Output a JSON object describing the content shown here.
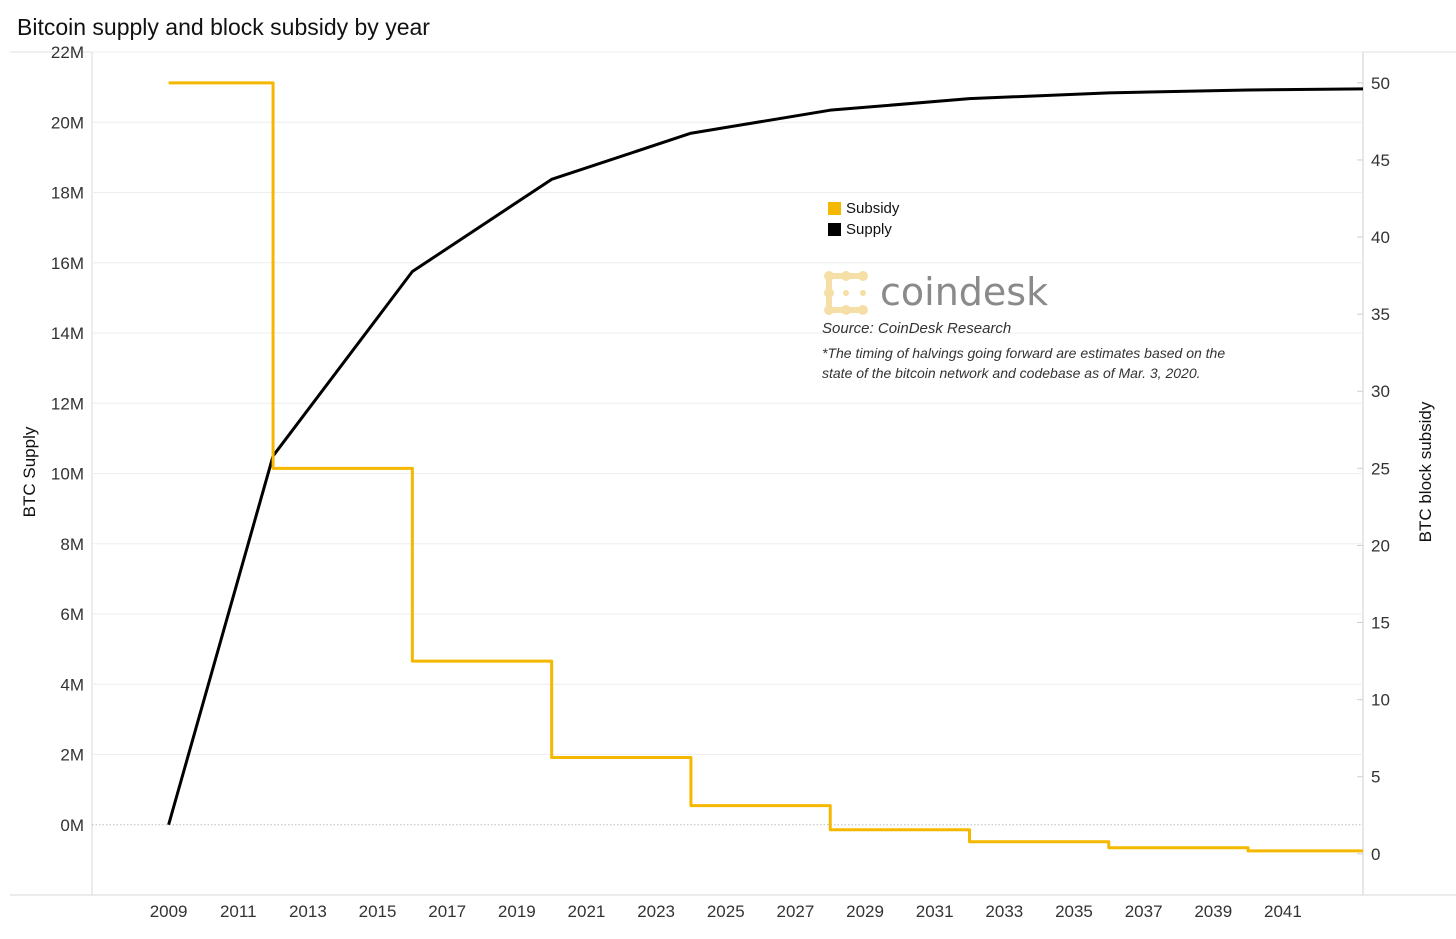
{
  "chart_data": {
    "type": "line",
    "title": "Bitcoin supply and block subsidy by year",
    "ylabel_left": "BTC Supply",
    "ylabel_right": "BTC block subsidy",
    "ylim_left": [
      -2000000,
      22000000
    ],
    "ylim_right": [
      -2.67,
      52
    ],
    "yticks_left": [
      {
        "value": 0,
        "label": "0M"
      },
      {
        "value": 2000000,
        "label": "2M"
      },
      {
        "value": 4000000,
        "label": "4M"
      },
      {
        "value": 6000000,
        "label": "6M"
      },
      {
        "value": 8000000,
        "label": "8M"
      },
      {
        "value": 10000000,
        "label": "10M"
      },
      {
        "value": 12000000,
        "label": "12M"
      },
      {
        "value": 14000000,
        "label": "14M"
      },
      {
        "value": 16000000,
        "label": "16M"
      },
      {
        "value": 18000000,
        "label": "18M"
      },
      {
        "value": 20000000,
        "label": "20M"
      },
      {
        "value": 22000000,
        "label": "22M"
      }
    ],
    "yticks_right": [
      {
        "value": 0,
        "label": "0"
      },
      {
        "value": 5,
        "label": "5"
      },
      {
        "value": 10,
        "label": "10"
      },
      {
        "value": 15,
        "label": "15"
      },
      {
        "value": 20,
        "label": "20"
      },
      {
        "value": 25,
        "label": "25"
      },
      {
        "value": 30,
        "label": "30"
      },
      {
        "value": 35,
        "label": "35"
      },
      {
        "value": 40,
        "label": "40"
      },
      {
        "value": 45,
        "label": "45"
      },
      {
        "value": 50,
        "label": "50"
      }
    ],
    "xlim": [
      2006.8,
      2043.3
    ],
    "xticks": [
      2009,
      2011,
      2013,
      2015,
      2017,
      2019,
      2021,
      2023,
      2025,
      2027,
      2029,
      2031,
      2033,
      2035,
      2037,
      2039,
      2041
    ],
    "series": [
      {
        "name": "Supply",
        "axis": "left",
        "color": "#000000",
        "points": [
          {
            "x": 2009,
            "y": 0
          },
          {
            "x": 2012,
            "y": 10500000
          },
          {
            "x": 2016,
            "y": 15750000
          },
          {
            "x": 2020,
            "y": 18375000
          },
          {
            "x": 2024,
            "y": 19687500
          },
          {
            "x": 2028,
            "y": 20343750
          },
          {
            "x": 2032,
            "y": 20671875
          },
          {
            "x": 2036,
            "y": 20835938
          },
          {
            "x": 2040,
            "y": 20917969
          },
          {
            "x": 2043.3,
            "y": 20950000
          }
        ]
      },
      {
        "name": "Subsidy",
        "axis": "right",
        "color": "#f5b800",
        "step": true,
        "points": [
          {
            "x": 2009,
            "y": 50
          },
          {
            "x": 2012,
            "y": 25
          },
          {
            "x": 2016,
            "y": 12.5
          },
          {
            "x": 2020,
            "y": 6.25
          },
          {
            "x": 2024,
            "y": 3.125
          },
          {
            "x": 2028,
            "y": 1.5625
          },
          {
            "x": 2032,
            "y": 0.78125
          },
          {
            "x": 2036,
            "y": 0.390625
          },
          {
            "x": 2040,
            "y": 0.1953125
          },
          {
            "x": 2043.3,
            "y": 0.1953125
          }
        ]
      }
    ],
    "legend": [
      {
        "label": "Subsidy",
        "color": "#f5b800"
      },
      {
        "label": "Supply",
        "color": "#000000"
      }
    ],
    "brand": "coindesk",
    "source": "Source: CoinDesk Research",
    "note_line1": "*The timing of halvings going forward are estimates based on the",
    "note_line2": "state of the bitcoin network and codebase as of Mar. 3, 2020."
  }
}
